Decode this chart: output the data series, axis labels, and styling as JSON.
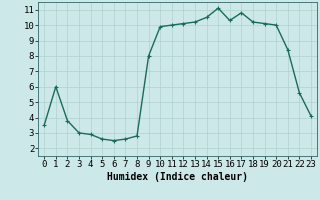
{
  "x": [
    0,
    1,
    2,
    3,
    4,
    5,
    6,
    7,
    8,
    9,
    10,
    11,
    12,
    13,
    14,
    15,
    16,
    17,
    18,
    19,
    20,
    21,
    22,
    23
  ],
  "y": [
    3.5,
    6.0,
    3.8,
    3.0,
    2.9,
    2.6,
    2.5,
    2.6,
    2.8,
    8.0,
    9.9,
    10.0,
    10.1,
    10.2,
    10.5,
    11.1,
    10.3,
    10.8,
    10.2,
    10.1,
    10.0,
    8.4,
    5.6,
    4.1
  ],
  "line_color": "#1a6b5a",
  "marker": "+",
  "marker_size": 3,
  "background_color": "#cde8e8",
  "grid_color": "#b0d0d0",
  "xlabel": "Humidex (Indice chaleur)",
  "xlim": [
    -0.5,
    23.5
  ],
  "ylim": [
    1.5,
    11.5
  ],
  "yticks": [
    2,
    3,
    4,
    5,
    6,
    7,
    8,
    9,
    10,
    11
  ],
  "xticks": [
    0,
    1,
    2,
    3,
    4,
    5,
    6,
    7,
    8,
    9,
    10,
    11,
    12,
    13,
    14,
    15,
    16,
    17,
    18,
    19,
    20,
    21,
    22,
    23
  ],
  "xlabel_fontsize": 7,
  "tick_fontsize": 6.5,
  "linewidth": 1.0
}
